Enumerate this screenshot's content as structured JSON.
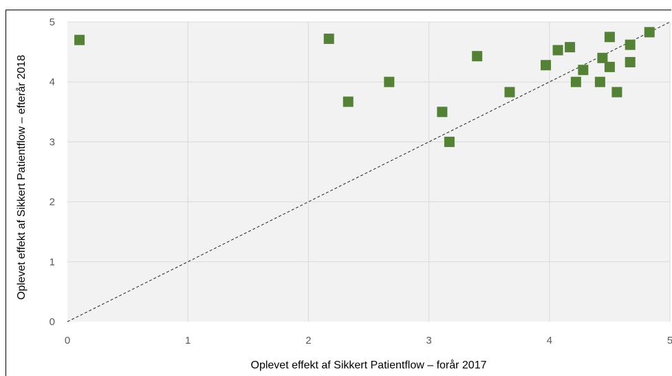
{
  "chart_data": {
    "type": "scatter",
    "xlabel": "Oplevet effekt af Sikkert Patientflow – forår 2017",
    "ylabel": "Oplevet effekt af Sikkert Patientflow – efterår 2018",
    "xlim": [
      0,
      5
    ],
    "ylim": [
      0,
      5
    ],
    "x_ticks": [
      "0",
      "1",
      "2",
      "3",
      "4",
      "5"
    ],
    "y_ticks": [
      "0",
      "1",
      "2",
      "3",
      "4",
      "5"
    ],
    "grid": true,
    "reference_line": {
      "style": "dashed",
      "from": [
        0,
        0
      ],
      "to": [
        5,
        5
      ]
    },
    "marker": "square",
    "marker_color": "#548235",
    "plot_background": "#f2f2f2",
    "points": [
      {
        "x": 0.1,
        "y": 4.7
      },
      {
        "x": 2.17,
        "y": 4.72
      },
      {
        "x": 2.33,
        "y": 3.67
      },
      {
        "x": 2.67,
        "y": 4.0
      },
      {
        "x": 3.11,
        "y": 3.5
      },
      {
        "x": 3.17,
        "y": 3.0
      },
      {
        "x": 3.4,
        "y": 4.43
      },
      {
        "x": 3.67,
        "y": 3.83
      },
      {
        "x": 3.97,
        "y": 4.28
      },
      {
        "x": 4.07,
        "y": 4.53
      },
      {
        "x": 4.17,
        "y": 4.58
      },
      {
        "x": 4.22,
        "y": 4.0
      },
      {
        "x": 4.28,
        "y": 4.2
      },
      {
        "x": 4.42,
        "y": 4.0
      },
      {
        "x": 4.44,
        "y": 4.4
      },
      {
        "x": 4.5,
        "y": 4.75
      },
      {
        "x": 4.5,
        "y": 4.25
      },
      {
        "x": 4.56,
        "y": 3.83
      },
      {
        "x": 4.67,
        "y": 4.62
      },
      {
        "x": 4.67,
        "y": 4.33
      },
      {
        "x": 4.83,
        "y": 4.83
      }
    ]
  }
}
